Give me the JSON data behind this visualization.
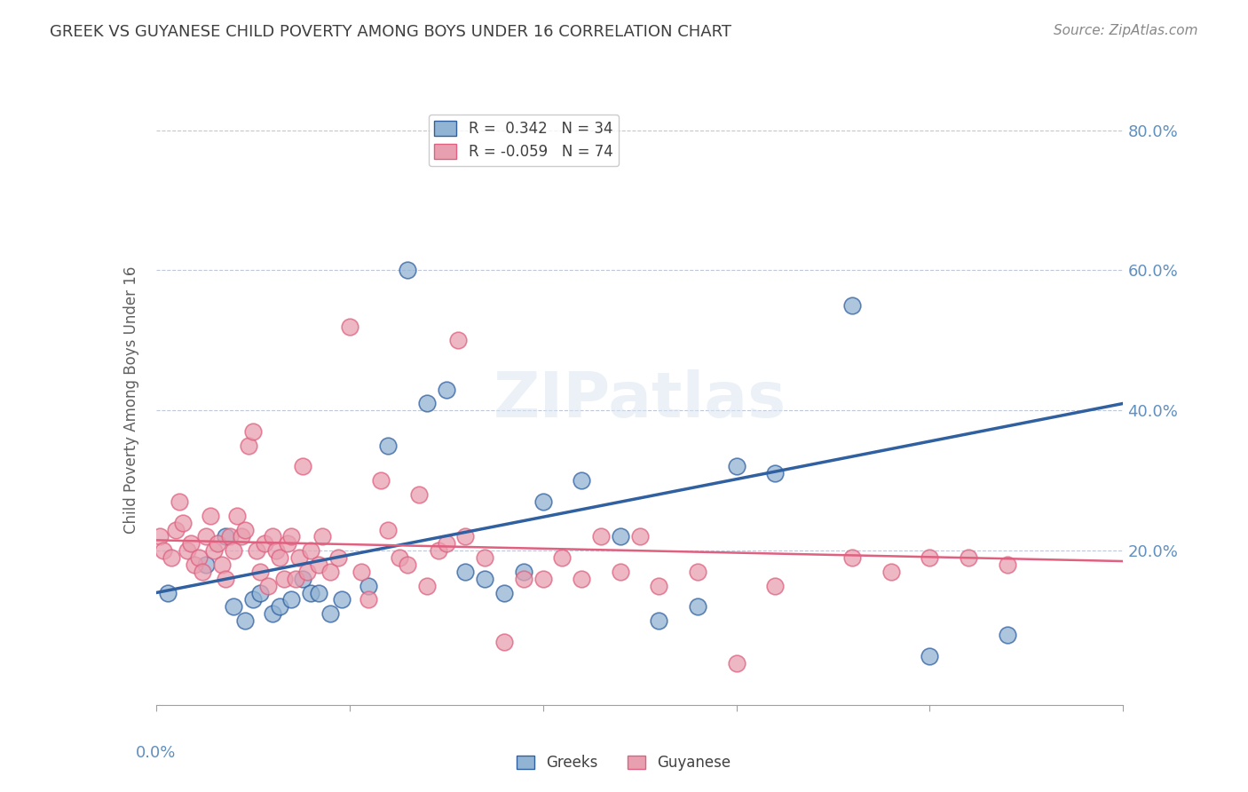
{
  "title": "GREEK VS GUYANESE CHILD POVERTY AMONG BOYS UNDER 16 CORRELATION CHART",
  "source": "Source: ZipAtlas.com",
  "ylabel": "Child Poverty Among Boys Under 16",
  "x_range": [
    0.0,
    0.25
  ],
  "y_range": [
    -0.02,
    0.85
  ],
  "greek_R": 0.342,
  "greek_N": 34,
  "guyanese_R": -0.059,
  "guyanese_N": 74,
  "greek_color": "#92b4d4",
  "guyanese_color": "#e8a0b0",
  "greek_line_color": "#3060a0",
  "guyanese_line_color": "#e06080",
  "watermark": "ZIPatlas",
  "axis_color": "#6090c0",
  "y_ticks": [
    0.2,
    0.4,
    0.6,
    0.8
  ],
  "y_tick_labels": [
    "20.0%",
    "40.0%",
    "60.0%",
    "80.0%"
  ],
  "greek_line_y0": 0.14,
  "greek_line_y1": 0.41,
  "guyanese_line_y0": 0.215,
  "guyanese_line_y1": 0.185,
  "greeks_x": [
    0.003,
    0.013,
    0.018,
    0.02,
    0.023,
    0.025,
    0.027,
    0.03,
    0.032,
    0.035,
    0.038,
    0.04,
    0.042,
    0.045,
    0.048,
    0.055,
    0.06,
    0.065,
    0.07,
    0.075,
    0.08,
    0.085,
    0.09,
    0.095,
    0.1,
    0.11,
    0.12,
    0.13,
    0.14,
    0.15,
    0.16,
    0.18,
    0.2,
    0.22
  ],
  "greeks_y": [
    0.14,
    0.18,
    0.22,
    0.12,
    0.1,
    0.13,
    0.14,
    0.11,
    0.12,
    0.13,
    0.16,
    0.14,
    0.14,
    0.11,
    0.13,
    0.15,
    0.35,
    0.6,
    0.41,
    0.43,
    0.17,
    0.16,
    0.14,
    0.17,
    0.27,
    0.3,
    0.22,
    0.1,
    0.12,
    0.32,
    0.31,
    0.55,
    0.05,
    0.08
  ],
  "guyanese_x": [
    0.001,
    0.002,
    0.004,
    0.005,
    0.006,
    0.007,
    0.008,
    0.009,
    0.01,
    0.011,
    0.012,
    0.013,
    0.014,
    0.015,
    0.016,
    0.017,
    0.018,
    0.019,
    0.02,
    0.021,
    0.022,
    0.023,
    0.024,
    0.025,
    0.026,
    0.027,
    0.028,
    0.029,
    0.03,
    0.031,
    0.032,
    0.033,
    0.034,
    0.035,
    0.036,
    0.037,
    0.038,
    0.039,
    0.04,
    0.042,
    0.043,
    0.045,
    0.047,
    0.05,
    0.053,
    0.055,
    0.058,
    0.06,
    0.063,
    0.065,
    0.068,
    0.07,
    0.073,
    0.075,
    0.078,
    0.08,
    0.085,
    0.09,
    0.095,
    0.1,
    0.105,
    0.11,
    0.115,
    0.12,
    0.125,
    0.13,
    0.14,
    0.15,
    0.16,
    0.18,
    0.19,
    0.2,
    0.21,
    0.22
  ],
  "guyanese_y": [
    0.22,
    0.2,
    0.19,
    0.23,
    0.27,
    0.24,
    0.2,
    0.21,
    0.18,
    0.19,
    0.17,
    0.22,
    0.25,
    0.2,
    0.21,
    0.18,
    0.16,
    0.22,
    0.2,
    0.25,
    0.22,
    0.23,
    0.35,
    0.37,
    0.2,
    0.17,
    0.21,
    0.15,
    0.22,
    0.2,
    0.19,
    0.16,
    0.21,
    0.22,
    0.16,
    0.19,
    0.32,
    0.17,
    0.2,
    0.18,
    0.22,
    0.17,
    0.19,
    0.52,
    0.17,
    0.13,
    0.3,
    0.23,
    0.19,
    0.18,
    0.28,
    0.15,
    0.2,
    0.21,
    0.5,
    0.22,
    0.19,
    0.07,
    0.16,
    0.16,
    0.19,
    0.16,
    0.22,
    0.17,
    0.22,
    0.15,
    0.17,
    0.04,
    0.15,
    0.19,
    0.17,
    0.19,
    0.19,
    0.18
  ]
}
